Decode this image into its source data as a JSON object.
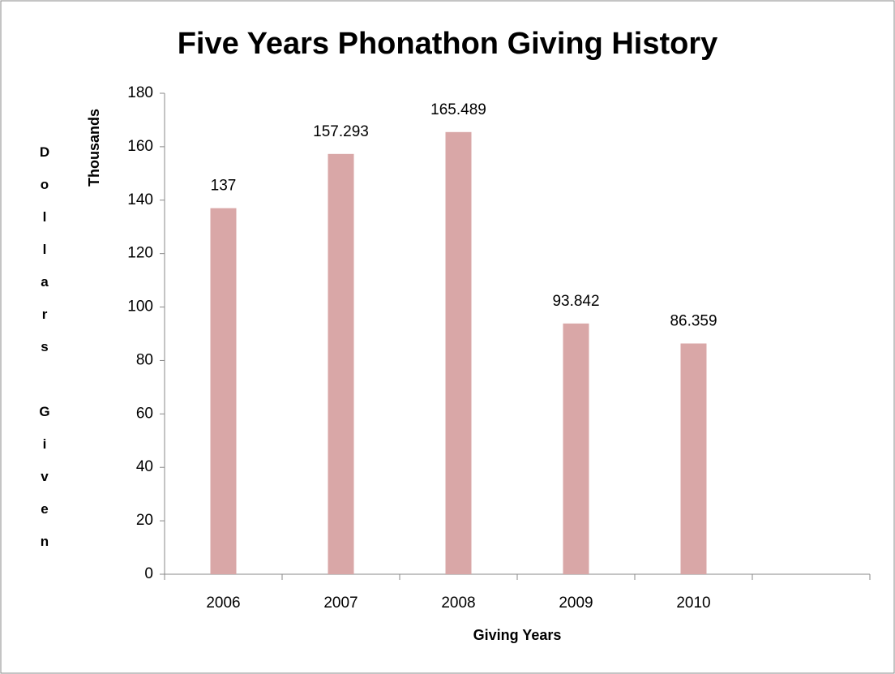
{
  "chart_data": {
    "type": "bar",
    "title": "Five Years Phonathon Giving History",
    "x_label": "Giving Years",
    "y_label": "Dollars Given",
    "y_unit_label": "Thousands",
    "categories": [
      "2006",
      "2007",
      "2008",
      "2009",
      "2010",
      null
    ],
    "values": [
      137,
      157.293,
      165.489,
      93.842,
      86.359,
      null
    ],
    "color": "#d9a7a7",
    "ylim": [
      0,
      180
    ],
    "yticks": [
      0,
      20,
      40,
      60,
      80,
      100,
      120,
      140,
      160,
      180
    ],
    "grid": false
  }
}
